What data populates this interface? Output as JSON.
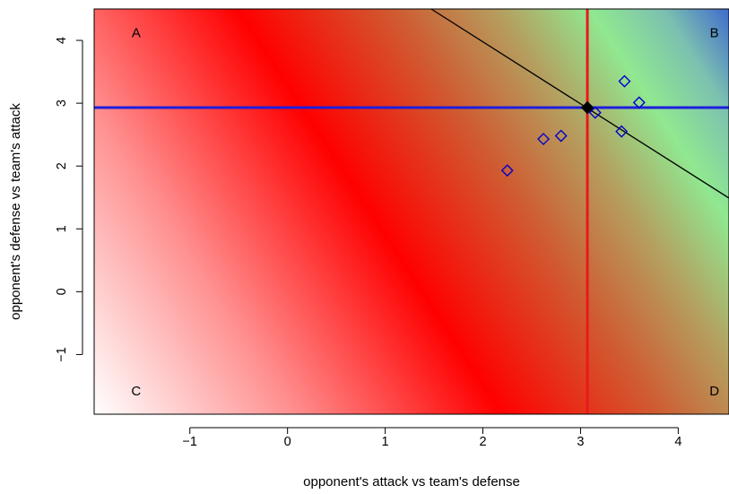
{
  "chart_data": {
    "type": "scatter",
    "title": "",
    "xlabel": "opponent's attack vs team's defense",
    "ylabel": "opponent's defense vs team's attack",
    "xlim": [
      -1.98,
      4.52
    ],
    "ylim": [
      -1.95,
      4.5
    ],
    "x_ticks": [
      -1,
      0,
      1,
      2,
      3,
      4
    ],
    "y_ticks": [
      -1,
      0,
      1,
      2,
      3,
      4
    ],
    "x_tick_labels": [
      "−1",
      "0",
      "1",
      "2",
      "3",
      "4"
    ],
    "y_tick_labels": [
      "−1",
      "0",
      "1",
      "2",
      "3",
      "4"
    ],
    "grid": false,
    "background": "gradient: white (bottom-left) → red → green → blue (top-right)",
    "corner_labels": [
      {
        "name": "A",
        "x": -1.55,
        "y": 4.12
      },
      {
        "name": "B",
        "x": 4.37,
        "y": 4.12
      },
      {
        "name": "C",
        "x": -1.55,
        "y": -1.58
      },
      {
        "name": "D",
        "x": 4.37,
        "y": -1.58
      }
    ],
    "series": [
      {
        "marker": "open-diamond",
        "color": "#0000cc",
        "points": [
          {
            "x": 2.25,
            "y": 1.93
          },
          {
            "x": 2.62,
            "y": 2.43
          },
          {
            "x": 2.8,
            "y": 2.48
          },
          {
            "x": 3.15,
            "y": 2.85
          },
          {
            "x": 3.42,
            "y": 2.55
          },
          {
            "x": 3.45,
            "y": 3.35
          },
          {
            "x": 3.6,
            "y": 3.01
          }
        ]
      },
      {
        "marker": "filled-diamond",
        "color": "#000000",
        "points": [
          {
            "x": 3.07,
            "y": 2.93
          }
        ]
      }
    ],
    "reference_lines": {
      "vertical": {
        "x": 3.07,
        "color": "#e8191b"
      },
      "horizontal": {
        "y": 2.93,
        "color": "#1e1edd"
      },
      "diagonal": {
        "points": [
          [
            1.47,
            4.5
          ],
          [
            4.52,
            1.49
          ]
        ],
        "color": "#000000"
      }
    }
  }
}
